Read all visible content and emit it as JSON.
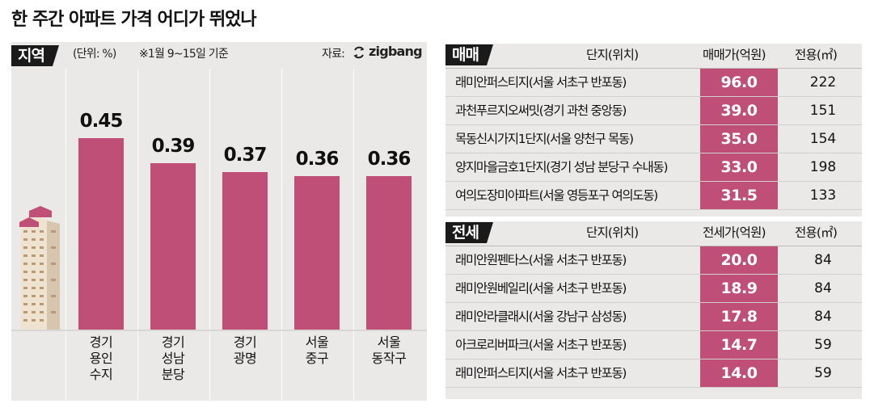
{
  "title": "한 주간 아파트 가격 어디가 뛰었나",
  "region_panel": {
    "tag": "지역",
    "unit": "(단위: %)",
    "period": "※1월 9~15일 기준",
    "source_label": "자료:",
    "source_brand": "zigbang"
  },
  "chart_data": {
    "type": "bar",
    "categories": [
      "경기\n용인\n수지",
      "경기\n성남\n분당",
      "경기\n광명",
      "서울\n중구",
      "서울\n동작구"
    ],
    "values": [
      0.45,
      0.39,
      0.37,
      0.36,
      0.36
    ],
    "value_labels": [
      "0.45",
      "0.39",
      "0.37",
      "0.36",
      "0.36"
    ],
    "ylim": [
      0,
      0.55
    ],
    "color": "#c04f78"
  },
  "sale_table": {
    "tag": "매매",
    "headers": {
      "name": "단지(위치)",
      "price": "매매가(억원)",
      "area": "전용(㎡)"
    },
    "rows": [
      {
        "name": "래미안퍼스티지(서울 서초구 반포동)",
        "price": "96.0",
        "area": "222"
      },
      {
        "name": "과천푸르지오써밋(경기 과천 중앙동)",
        "price": "39.0",
        "area": "151"
      },
      {
        "name": "목동신시가지1단지(서울 양천구 목동)",
        "price": "35.0",
        "area": "154"
      },
      {
        "name": "양지마을금호1단지(경기 성남 분당구 수내동)",
        "price": "33.0",
        "area": "198"
      },
      {
        "name": "여의도장미아파트(서울 영등포구 여의도동)",
        "price": "31.5",
        "area": "133"
      }
    ]
  },
  "jeonse_table": {
    "tag": "전세",
    "headers": {
      "name": "단지(위치)",
      "price": "전세가(억원)",
      "area": "전용(㎡)"
    },
    "rows": [
      {
        "name": "래미안원펜타스(서울 서초구 반포동)",
        "price": "20.0",
        "area": "84"
      },
      {
        "name": "래미안원베일리(서울 서초구 반포동)",
        "price": "18.9",
        "area": "84"
      },
      {
        "name": "래미안라클래시(서울 강남구 삼성동)",
        "price": "17.8",
        "area": "84"
      },
      {
        "name": "아크로리버파크(서울 서초구 반포동)",
        "price": "14.7",
        "area": "59"
      },
      {
        "name": "래미안퍼스티지(서울 서초구 반포동)",
        "price": "14.0",
        "area": "59"
      }
    ]
  },
  "colors": {
    "accent": "#c04f78",
    "panel_bg": "#ebe9e7",
    "tag_bg": "#1a1a1a"
  }
}
